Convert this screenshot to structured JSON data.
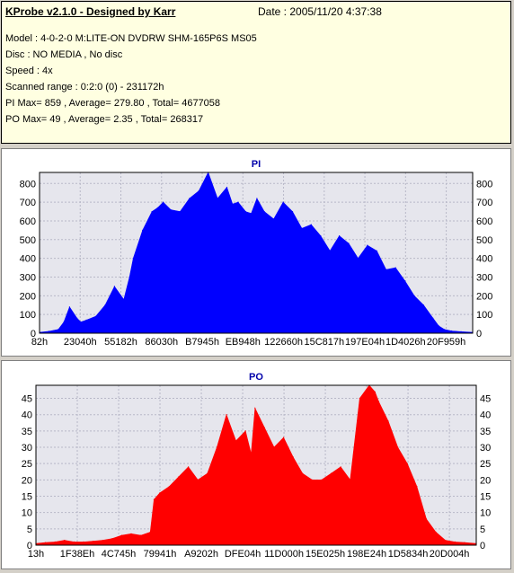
{
  "header": {
    "app_title": "KProbe v2.1.0 - Designed by Karr",
    "date": "Date : 2005/11/20 4:37:38",
    "lines": [
      "Model : 4-0-2-0 M:LITE-ON DVDRW SHM-165P6S MS05",
      "Disc : NO MEDIA , No disc",
      "Speed : 4x",
      "Scanned range : 0:2:0 (0) - 231172h",
      "PI Max= 859 , Average= 279.80 , Total= 4677058",
      "PO Max= 49 , Average= 2.35 , Total= 268317"
    ]
  },
  "colors": {
    "pi": "#0000ff",
    "po": "#ff0000",
    "plot_bg": "#e6e6ed",
    "grid": "#b8b8c8"
  },
  "chart_data": [
    {
      "type": "area",
      "title": "PI",
      "ylim": [
        0,
        859
      ],
      "yticks": [
        0,
        100,
        200,
        300,
        400,
        500,
        600,
        700,
        800
      ],
      "xticks": [
        "82h",
        "23040h",
        "55182h",
        "86030h",
        "B7945h",
        "EB948h",
        "122660h",
        "15C817h",
        "197E04h",
        "1D4026h",
        "20F959h"
      ],
      "x_range": [
        0,
        231172
      ],
      "x": [
        0,
        5000,
        10000,
        13000,
        16000,
        20000,
        22000,
        25000,
        30000,
        35000,
        40000,
        45000,
        48000,
        50000,
        55000,
        60000,
        63000,
        66000,
        70000,
        75000,
        80000,
        85000,
        90000,
        95000,
        100000,
        103000,
        106000,
        110000,
        113000,
        116000,
        120000,
        125000,
        130000,
        135000,
        140000,
        145000,
        150000,
        155000,
        160000,
        165000,
        170000,
        175000,
        180000,
        185000,
        190000,
        195000,
        200000,
        205000,
        210000,
        213000,
        216000,
        220000,
        225000,
        231172
      ],
      "y": [
        5,
        10,
        20,
        60,
        140,
        80,
        60,
        70,
        90,
        150,
        250,
        180,
        300,
        400,
        550,
        650,
        670,
        700,
        660,
        650,
        720,
        760,
        859,
        720,
        780,
        690,
        700,
        650,
        640,
        720,
        650,
        610,
        700,
        650,
        560,
        580,
        520,
        440,
        520,
        480,
        400,
        470,
        440,
        340,
        350,
        280,
        200,
        150,
        80,
        40,
        20,
        12,
        8,
        5
      ]
    },
    {
      "type": "area",
      "title": "PO",
      "ylim": [
        0,
        49
      ],
      "yticks": [
        0,
        5,
        10,
        15,
        20,
        25,
        30,
        35,
        40,
        45
      ],
      "xticks": [
        "13h",
        "1F38Eh",
        "4C745h",
        "79941h",
        "A9202h",
        "DFE04h",
        "11D000h",
        "15E025h",
        "198E24h",
        "1D5834h",
        "20D004h"
      ],
      "x_range": [
        0,
        231172
      ],
      "x": [
        0,
        5000,
        10000,
        15000,
        20000,
        25000,
        30000,
        35000,
        40000,
        45000,
        50000,
        55000,
        60000,
        62000,
        65000,
        70000,
        75000,
        80000,
        85000,
        90000,
        95000,
        100000,
        105000,
        110000,
        113000,
        115000,
        120000,
        125000,
        130000,
        135000,
        140000,
        145000,
        150000,
        155000,
        160000,
        165000,
        170000,
        175000,
        178000,
        180000,
        185000,
        190000,
        195000,
        200000,
        205000,
        210000,
        215000,
        220000,
        225000,
        231172
      ],
      "y": [
        0.5,
        0.8,
        1,
        1.5,
        1,
        1,
        1.2,
        1.5,
        2,
        3,
        3.5,
        3,
        4,
        14,
        16,
        18,
        21,
        24,
        20,
        22,
        30,
        40,
        32,
        35,
        28,
        42,
        36,
        30,
        33,
        27,
        22,
        20,
        20,
        22,
        24,
        20,
        45,
        49,
        47,
        44,
        38,
        30,
        25,
        18,
        8,
        4,
        1.5,
        1,
        0.8,
        0.5
      ]
    }
  ]
}
